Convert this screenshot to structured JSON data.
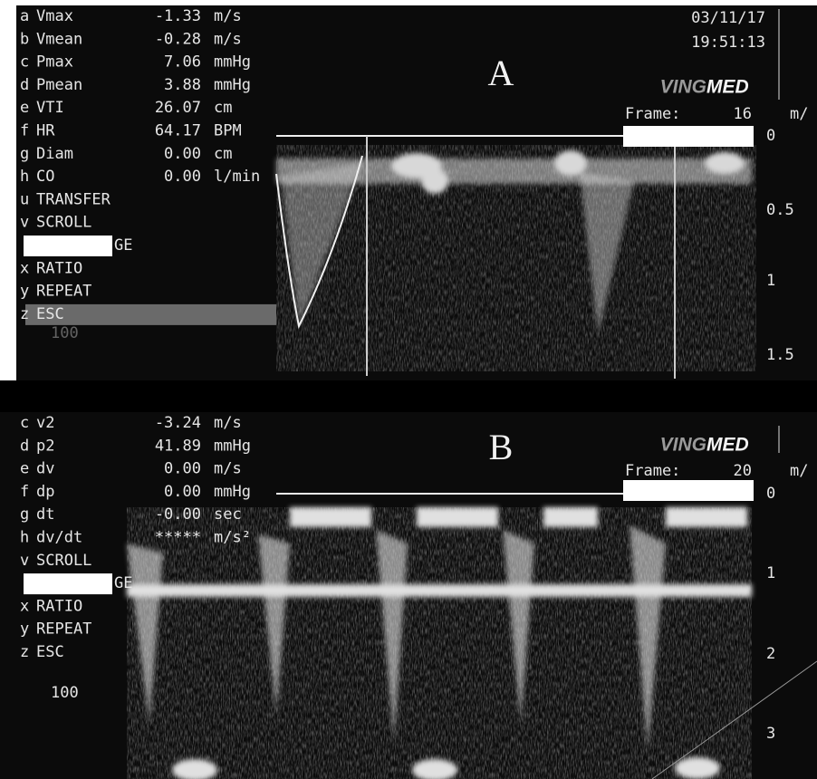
{
  "panels": [
    {
      "label": "A",
      "date": "03/11/17",
      "time": "19:51:13",
      "brand_light": "VING",
      "brand_bold": "MED",
      "frame_label": "Frame:",
      "frame_value": "16",
      "unit": "m/",
      "menu": [
        {
          "key": "a",
          "name": "Vmax",
          "value": "-1.33",
          "unit": "m/s"
        },
        {
          "key": "b",
          "name": "Vmean",
          "value": "-0.28",
          "unit": "m/s"
        },
        {
          "key": "c",
          "name": "Pmax",
          "value": "7.06",
          "unit": "mmHg"
        },
        {
          "key": "d",
          "name": "Pmean",
          "value": "3.88",
          "unit": "mmHg"
        },
        {
          "key": "e",
          "name": "VTI",
          "value": "26.07",
          "unit": "cm"
        },
        {
          "key": "f",
          "name": "HR",
          "value": "64.17",
          "unit": "BPM"
        },
        {
          "key": "g",
          "name": "Diam",
          "value": "0.00",
          "unit": "cm"
        },
        {
          "key": "h",
          "name": "CO",
          "value": "0.00",
          "unit": "l/min"
        },
        {
          "key": "u",
          "name": "TRANSFER"
        },
        {
          "key": "v",
          "name": "SCROLL"
        },
        {
          "name": "GE",
          "boxed": true
        },
        {
          "key": "x",
          "name": "RATIO"
        },
        {
          "key": "y",
          "name": "REPEAT"
        },
        {
          "key": "z",
          "name": "ESC",
          "highlight": true
        }
      ],
      "footer": "100",
      "scale": [
        "0",
        "0.5",
        "1",
        "1.5"
      ]
    },
    {
      "label": "B",
      "brand_light": "VING",
      "brand_bold": "MED",
      "frame_label": "Frame:",
      "frame_value": "20",
      "unit": "m/",
      "menu": [
        {
          "key": "c",
          "name": "v2",
          "value": "-3.24",
          "unit": "m/s"
        },
        {
          "key": "d",
          "name": "p2",
          "value": "41.89",
          "unit": "mmHg"
        },
        {
          "key": "e",
          "name": "dv",
          "value": "0.00",
          "unit": "m/s"
        },
        {
          "key": "f",
          "name": "dp",
          "value": "0.00",
          "unit": "mmHg"
        },
        {
          "key": "g",
          "name": "dt",
          "value": "-0.00",
          "unit": "sec"
        },
        {
          "key": "h",
          "name": "dv/dt",
          "value": "*****",
          "unit": "m/s²"
        },
        {
          "key": "v",
          "name": "SCROLL"
        },
        {
          "name": "GE",
          "boxed": true
        },
        {
          "key": "x",
          "name": "RATIO"
        },
        {
          "key": "y",
          "name": "REPEAT"
        },
        {
          "key": "z",
          "name": "ESC"
        }
      ],
      "footer": "100",
      "scale": [
        "0",
        "1",
        "2",
        "3"
      ]
    }
  ]
}
